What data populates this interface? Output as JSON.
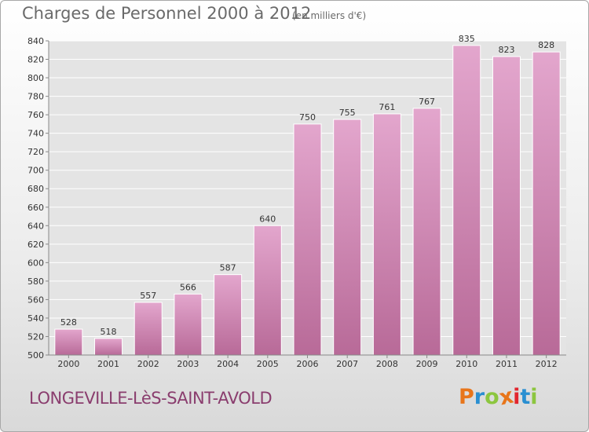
{
  "header": {
    "title": "Charges de Personnel 2000 à 2012",
    "unit_note": "(en milliers d'€)"
  },
  "footer": {
    "commune": "LONGEVILLE-LèS-SAINT-AVOLD",
    "logo": "Proxiti"
  },
  "colors": {
    "bar_top": "#e3a6cd",
    "bar_bottom": "#b86a98",
    "logo_letters": [
      "#e8751a",
      "#2a8fd1",
      "#8cc63f",
      "#e8751a",
      "#e2262e",
      "#2a8fd1",
      "#8cc63f"
    ]
  },
  "chart_data": {
    "type": "bar",
    "title": "Charges de Personnel 2000 à 2012",
    "subtitle": "(en milliers d'€)",
    "categories": [
      "2000",
      "2001",
      "2002",
      "2003",
      "2004",
      "2005",
      "2006",
      "2007",
      "2008",
      "2009",
      "2010",
      "2011",
      "2012"
    ],
    "values": [
      528,
      518,
      557,
      566,
      587,
      640,
      750,
      755,
      761,
      767,
      835,
      823,
      828
    ],
    "ylim": [
      500,
      840
    ],
    "yticks": [
      500,
      520,
      540,
      560,
      580,
      600,
      620,
      640,
      660,
      680,
      700,
      720,
      740,
      760,
      780,
      800,
      820,
      840
    ],
    "grid": true,
    "data_labels": true
  }
}
